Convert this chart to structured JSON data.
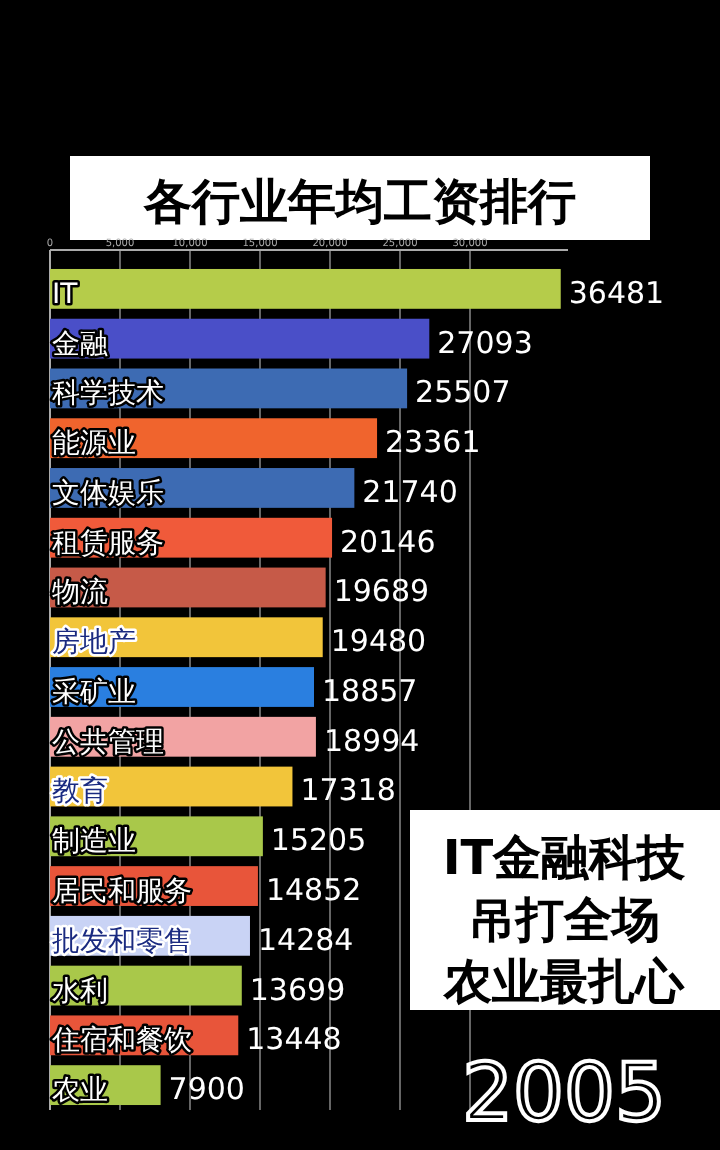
{
  "chart_data": {
    "type": "bar",
    "orientation": "horizontal",
    "title": "各行业年均工资排行",
    "categories": [
      "IT",
      "金融",
      "科学技术",
      "能源业",
      "文体娱乐",
      "租赁服务",
      "物流",
      "房地产",
      "采矿业",
      "公共管理",
      "教育",
      "制造业",
      "居民和服务",
      "批发和零售",
      "水利",
      "住宿和餐饮",
      "农业"
    ],
    "values": [
      36481,
      27093,
      25507,
      23361,
      21740,
      20146,
      19689,
      19480,
      18857,
      18994,
      17318,
      15205,
      14852,
      14284,
      13699,
      13448,
      7900
    ],
    "colors": [
      "#b5cc4a",
      "#4a4fc8",
      "#3d6bb3",
      "#f0642d",
      "#3d6bb3",
      "#f05a3a",
      "#c65a48",
      "#f2c53a",
      "#2a7fe0",
      "#f2a3a3",
      "#f2c53a",
      "#a9c84a",
      "#e8553a",
      "#c9d3f5",
      "#a9c84a",
      "#e8553a",
      "#a9c84a"
    ],
    "xlim": [
      0,
      37000
    ],
    "xticks": [
      0,
      {
        "value": 5000,
        "label": "5,000"
      },
      {
        "value": 10000,
        "label": "10,000"
      },
      {
        "value": 15000,
        "label": "15,000"
      },
      {
        "value": 20000,
        "label": "20,000"
      },
      {
        "value": 25000,
        "label": "25,000"
      },
      {
        "value": 30000,
        "label": "30,000"
      }
    ],
    "grid": "x",
    "data_labels": true,
    "annotations": [
      "IT金融科技",
      "吊打全场",
      "农业最扎心",
      "2005"
    ]
  }
}
